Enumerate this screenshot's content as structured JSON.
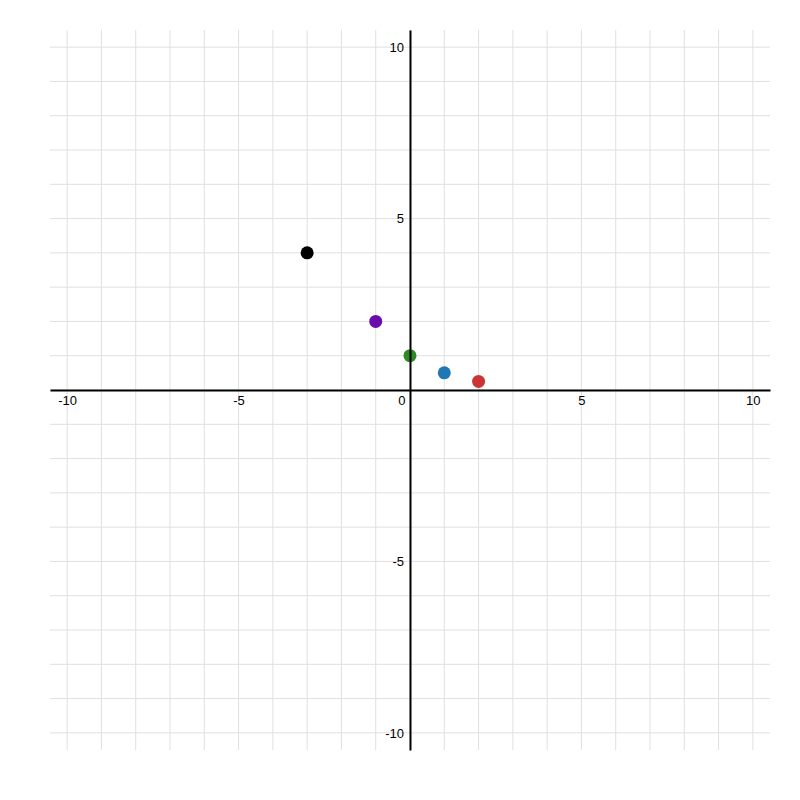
{
  "chart_data": {
    "type": "scatter",
    "x": [
      -3,
      -1,
      0,
      1,
      2
    ],
    "values": [
      4,
      2,
      1,
      0.5,
      0.25
    ],
    "colors": [
      "#000000",
      "#6A0DAD",
      "#2E8B22",
      "#1F77B4",
      "#CC3333"
    ],
    "marker": "circle",
    "xlim": [
      -10.5,
      10.5
    ],
    "ylim": [
      -10.5,
      10.5
    ],
    "xticks": [
      -10,
      {
        "value": -9,
        "label": null
      },
      {
        "value": -8,
        "label": null
      },
      {
        "value": -7,
        "label": null
      },
      {
        "value": -6,
        "label": null
      },
      -5,
      {
        "value": -4,
        "label": null
      },
      {
        "value": -3,
        "label": null
      },
      {
        "value": -2,
        "label": null
      },
      {
        "value": -1,
        "label": null
      },
      0,
      {
        "value": 1,
        "label": null
      },
      {
        "value": 2,
        "label": null
      },
      {
        "value": 3,
        "label": null
      },
      {
        "value": 4,
        "label": null
      },
      5,
      {
        "value": 6,
        "label": null
      },
      {
        "value": 7,
        "label": null
      },
      {
        "value": 8,
        "label": null
      },
      {
        "value": 9,
        "label": null
      },
      10
    ],
    "yticks": [
      -10,
      {
        "value": -9,
        "label": null
      },
      {
        "value": -8,
        "label": null
      },
      {
        "value": -7,
        "label": null
      },
      {
        "value": -6,
        "label": null
      },
      -5,
      {
        "value": -4,
        "label": null
      },
      {
        "value": -3,
        "label": null
      },
      {
        "value": -2,
        "label": null
      },
      {
        "value": -1,
        "label": null
      },
      {
        "value": 0,
        "label": null
      },
      {
        "value": 1,
        "label": null
      },
      {
        "value": 2,
        "label": null
      },
      {
        "value": 3,
        "label": null
      },
      {
        "value": 4,
        "label": null
      },
      5,
      {
        "value": 6,
        "label": null
      },
      {
        "value": 7,
        "label": null
      },
      {
        "value": 8,
        "label": null
      },
      {
        "value": 9,
        "label": null
      },
      10
    ],
    "grid": true
  }
}
